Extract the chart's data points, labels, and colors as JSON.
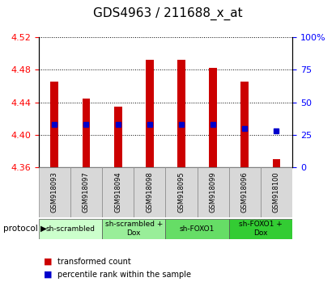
{
  "title": "GDS4963 / 211688_x_at",
  "samples": [
    "GSM918093",
    "GSM918097",
    "GSM918094",
    "GSM918098",
    "GSM918095",
    "GSM918099",
    "GSM918096",
    "GSM918100"
  ],
  "transformed_counts": [
    4.465,
    4.445,
    4.435,
    4.492,
    4.492,
    4.482,
    4.465,
    4.37
  ],
  "percentile_ranks": [
    33,
    33,
    33,
    33,
    33,
    33,
    30,
    28
  ],
  "bar_bottom": 4.36,
  "ylim": [
    4.36,
    4.52
  ],
  "yticks": [
    4.36,
    4.4,
    4.44,
    4.48,
    4.52
  ],
  "right_yticks": [
    0,
    25,
    50,
    75,
    100
  ],
  "bar_color": "#cc0000",
  "dot_color": "#0000cc",
  "group_labels": [
    "sh-scrambled",
    "sh-scrambled +\nDox",
    "sh-FOXO1",
    "sh-FOXO1 +\nDox"
  ],
  "group_colors": [
    "#ccffcc",
    "#99ee99",
    "#66dd66",
    "#33cc33"
  ],
  "legend_bar_color": "#cc0000",
  "legend_dot_color": "#0000cc",
  "left_tick_color": "red",
  "right_tick_color": "blue",
  "title_fontsize": 11,
  "tick_fontsize": 8,
  "bar_width": 0.25
}
